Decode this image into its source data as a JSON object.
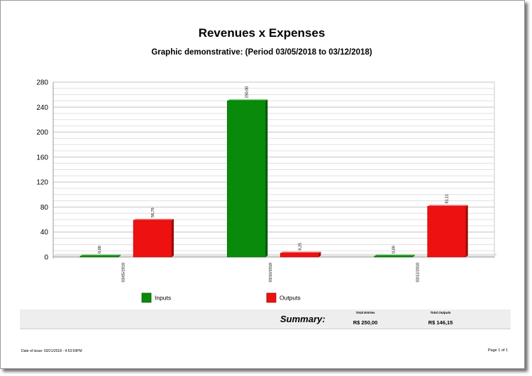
{
  "report": {
    "title": "Revenues x Expenses",
    "subtitle": "Graphic demonstrative: (Period 03/05/2018 to 03/12/2018)"
  },
  "summary": {
    "label": "Summary:",
    "total_entries_label": "Total Entries",
    "total_entries_value": "R$ 250,00",
    "total_outputs_label": "Total Outputs",
    "total_outputs_value": "R$ 146,15"
  },
  "footer": {
    "issue_date": "Date of issue: 03/21/2018 - 4:53:59PM",
    "page": "Page 1 of 1"
  },
  "chart_data": {
    "type": "bar",
    "categories": [
      "03/05/2018",
      "03/10/2018",
      "03/12/2018"
    ],
    "series": [
      {
        "name": "Inputs",
        "values": [
          0,
          250,
          0
        ],
        "labels": [
          "0,00",
          "250,00",
          "0,00"
        ],
        "color": "#0a8a0a"
      },
      {
        "name": "Outputs",
        "values": [
          58.79,
          6.25,
          81.11
        ],
        "labels": [
          "58,79",
          "6,25",
          "81,11"
        ],
        "color": "#ee1111"
      }
    ],
    "title": "",
    "xlabel": "",
    "ylabel": "",
    "ylim": [
      0,
      280
    ],
    "yticks": [
      "0",
      "40",
      "80",
      "120",
      "160",
      "200",
      "240",
      "280"
    ],
    "grid": true,
    "legend": "bottom"
  }
}
